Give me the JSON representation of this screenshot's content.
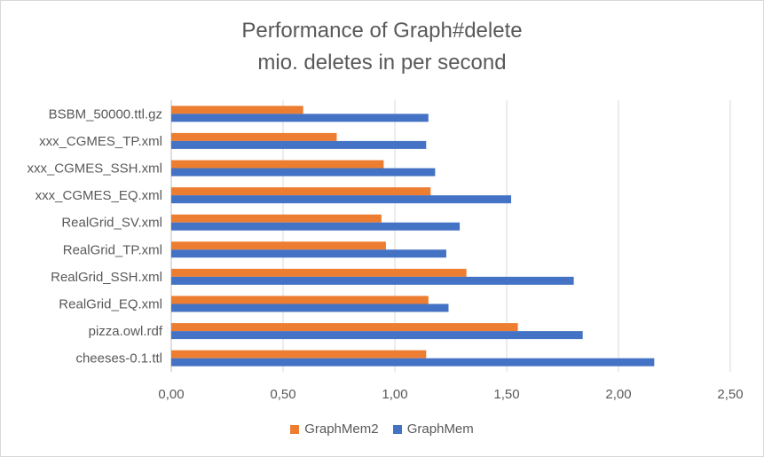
{
  "chart_data": {
    "type": "bar",
    "orientation": "horizontal",
    "title": "Performance of Graph#delete",
    "subtitle": "mio. deletes in per second",
    "categories": [
      "BSBM_50000.ttl.gz",
      "xxx_CGMES_TP.xml",
      "xxx_CGMES_SSH.xml",
      "xxx_CGMES_EQ.xml",
      "RealGrid_SV.xml",
      "RealGrid_TP.xml",
      "RealGrid_SSH.xml",
      "RealGrid_EQ.xml",
      "pizza.owl.rdf",
      "cheeses-0.1.ttl"
    ],
    "series": [
      {
        "name": "GraphMem2",
        "color": "#ed7d31",
        "values": [
          0.59,
          0.74,
          0.95,
          1.16,
          0.94,
          0.96,
          1.32,
          1.15,
          1.55,
          1.14
        ]
      },
      {
        "name": "GraphMem",
        "color": "#4472c4",
        "values": [
          1.15,
          1.14,
          1.18,
          1.52,
          1.29,
          1.23,
          1.8,
          1.24,
          1.84,
          2.16
        ]
      }
    ],
    "xlim": [
      0,
      2.5
    ],
    "xticks": [
      "0,00",
      "0,50",
      "1,00",
      "1,50",
      "2,00",
      "2,50"
    ],
    "xtick_values": [
      0,
      0.5,
      1.0,
      1.5,
      2.0,
      2.5
    ],
    "grid": true,
    "legend_position": "bottom"
  }
}
